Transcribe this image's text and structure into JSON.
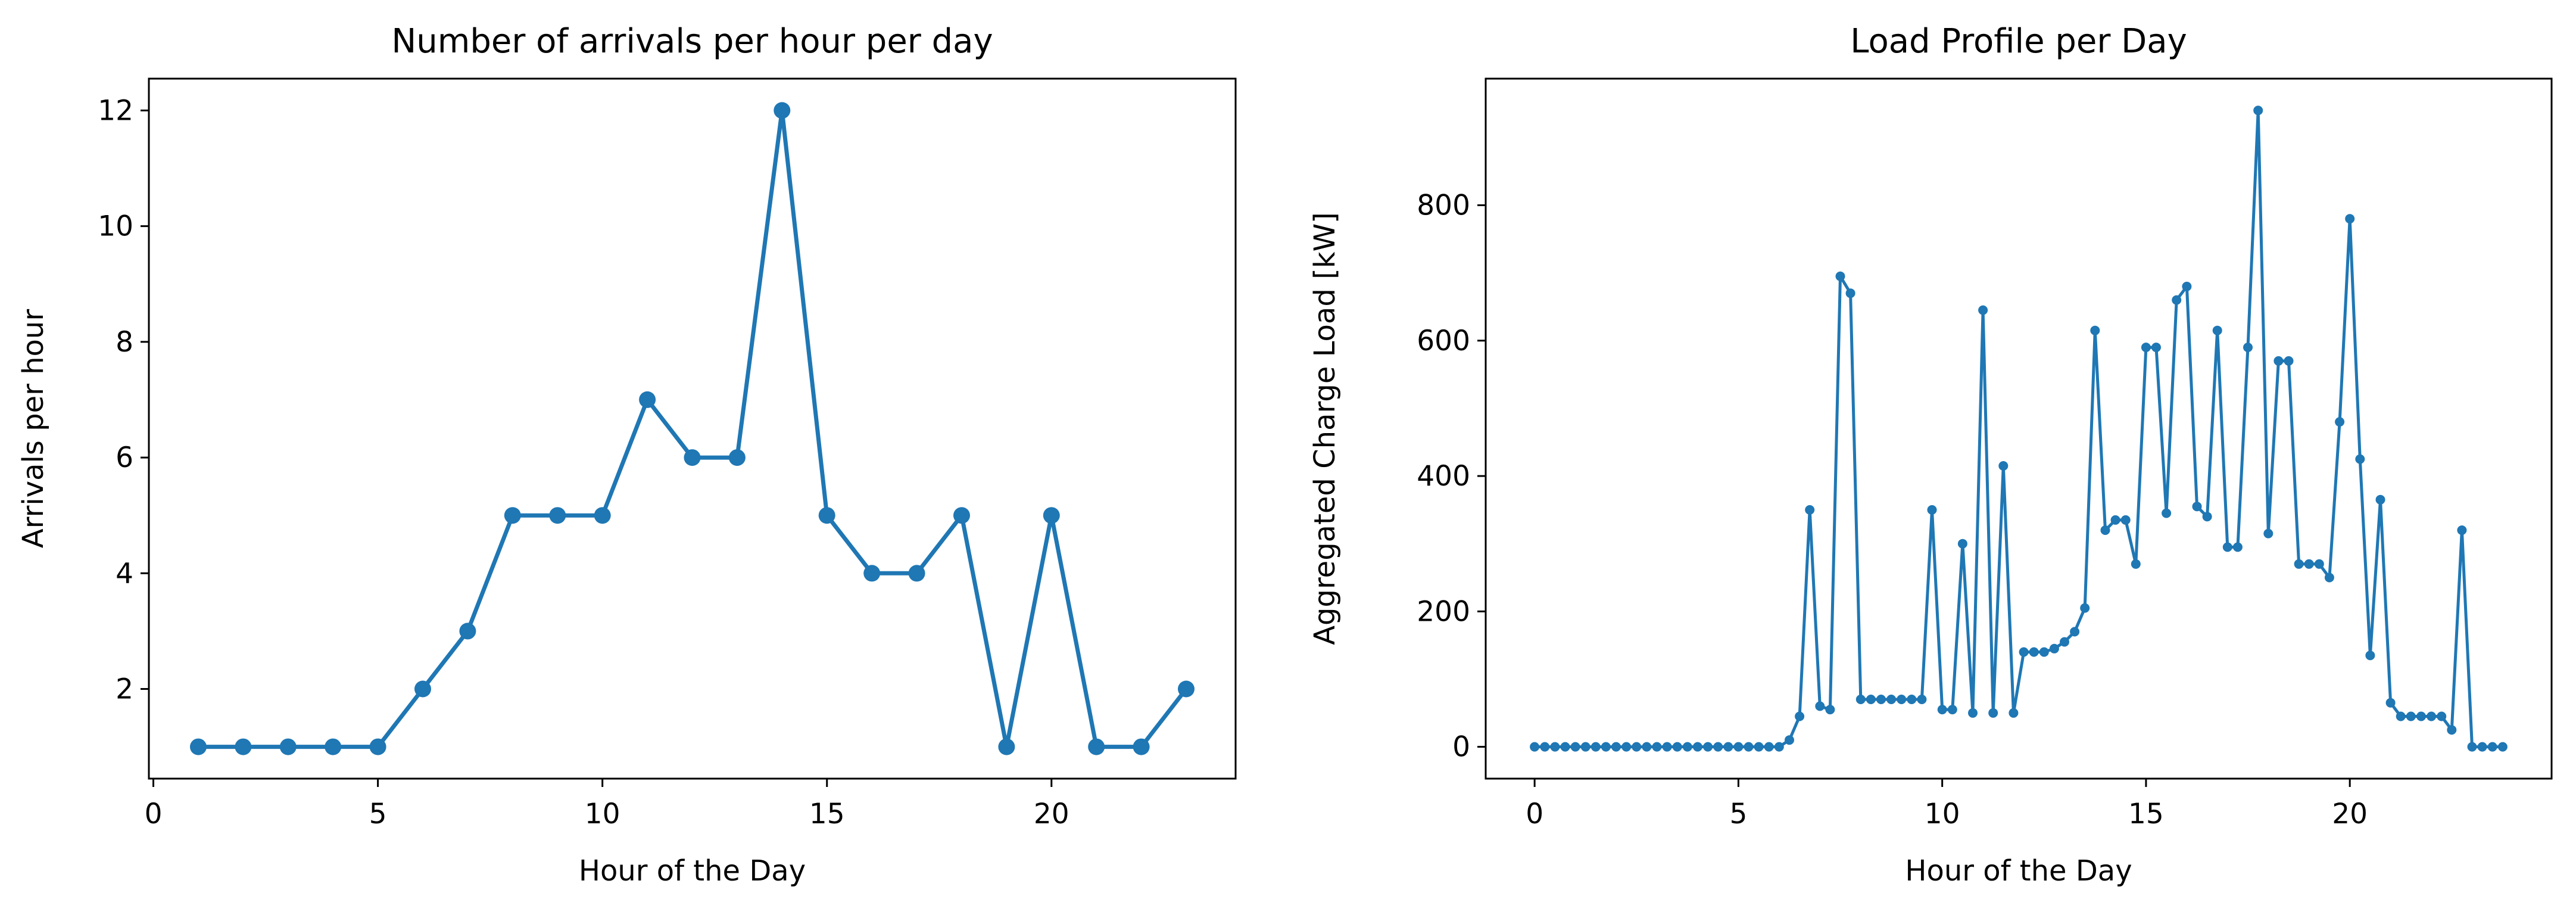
{
  "page": {
    "background": "#ffffff"
  },
  "colors": {
    "series": "#1f77b4",
    "axis": "#000000",
    "text": "#000000"
  },
  "chart_data": [
    {
      "type": "line",
      "title": "Number of arrivals per hour per day",
      "xlabel": "Hour of the Day",
      "ylabel": "Arrivals per hour",
      "x": [
        1,
        2,
        3,
        4,
        5,
        6,
        7,
        8,
        9,
        10,
        11,
        12,
        13,
        14,
        15,
        16,
        17,
        18,
        19,
        20,
        21,
        22,
        23
      ],
      "y": [
        1,
        1,
        1,
        1,
        1,
        2,
        3,
        5,
        5,
        5,
        7,
        6,
        6,
        12,
        5,
        4,
        4,
        5,
        1,
        5,
        1,
        1,
        2
      ],
      "xlim": [
        -0.1,
        24.1
      ],
      "ylim": [
        0.45,
        12.55
      ],
      "xticks": [
        0,
        5,
        10,
        15,
        20
      ],
      "yticks": [
        2,
        4,
        6,
        8,
        10,
        12
      ],
      "grid": false,
      "legend": null,
      "marker_radius": 14,
      "line_width": 7
    },
    {
      "type": "line",
      "title": "Load Profile per Day",
      "xlabel": "Hour of the Day",
      "ylabel": "Aggregated Charge Load [kW]",
      "x": [
        0,
        0.25,
        0.5,
        0.75,
        1,
        1.25,
        1.5,
        1.75,
        2,
        2.25,
        2.5,
        2.75,
        3,
        3.25,
        3.5,
        3.75,
        4,
        4.25,
        4.5,
        4.75,
        5,
        5.25,
        5.5,
        5.75,
        6,
        6.25,
        6.5,
        6.75,
        7,
        7.25,
        7.5,
        7.75,
        8,
        8.25,
        8.5,
        8.75,
        9,
        9.25,
        9.5,
        9.75,
        10,
        10.25,
        10.5,
        10.75,
        11,
        11.25,
        11.5,
        11.75,
        12,
        12.25,
        12.5,
        12.75,
        13,
        13.25,
        13.5,
        13.75,
        14,
        14.25,
        14.5,
        14.75,
        15,
        15.25,
        15.5,
        15.75,
        16,
        16.25,
        16.5,
        16.75,
        17,
        17.25,
        17.5,
        17.75,
        18,
        18.25,
        18.5,
        18.75,
        19,
        19.25,
        19.5,
        19.75,
        20,
        20.25,
        20.5,
        20.75,
        21,
        21.25,
        21.5,
        21.75,
        22,
        22.25,
        22.5,
        22.75,
        23,
        23.25,
        23.5,
        23.75
      ],
      "y": [
        0,
        0,
        0,
        0,
        0,
        0,
        0,
        0,
        0,
        0,
        0,
        0,
        0,
        0,
        0,
        0,
        0,
        0,
        0,
        0,
        0,
        0,
        0,
        0,
        0,
        10,
        45,
        350,
        60,
        55,
        695,
        670,
        70,
        70,
        70,
        70,
        70,
        70,
        70,
        350,
        55,
        55,
        300,
        50,
        645,
        50,
        415,
        50,
        140,
        140,
        140,
        145,
        155,
        170,
        205,
        615,
        320,
        335,
        335,
        270,
        590,
        590,
        345,
        660,
        680,
        355,
        340,
        615,
        295,
        295,
        590,
        940,
        315,
        570,
        570,
        270,
        270,
        270,
        250,
        480,
        780,
        425,
        135,
        365,
        65,
        45,
        45,
        45,
        45,
        45,
        25,
        320,
        0,
        0,
        0,
        0
      ],
      "xlim": [
        -1.2,
        24.95
      ],
      "ylim": [
        -47,
        987
      ],
      "xticks": [
        0,
        5,
        10,
        15,
        20
      ],
      "yticks": [
        0,
        200,
        400,
        600,
        800
      ],
      "grid": false,
      "legend": null,
      "marker_radius": 8,
      "line_width": 5
    }
  ]
}
